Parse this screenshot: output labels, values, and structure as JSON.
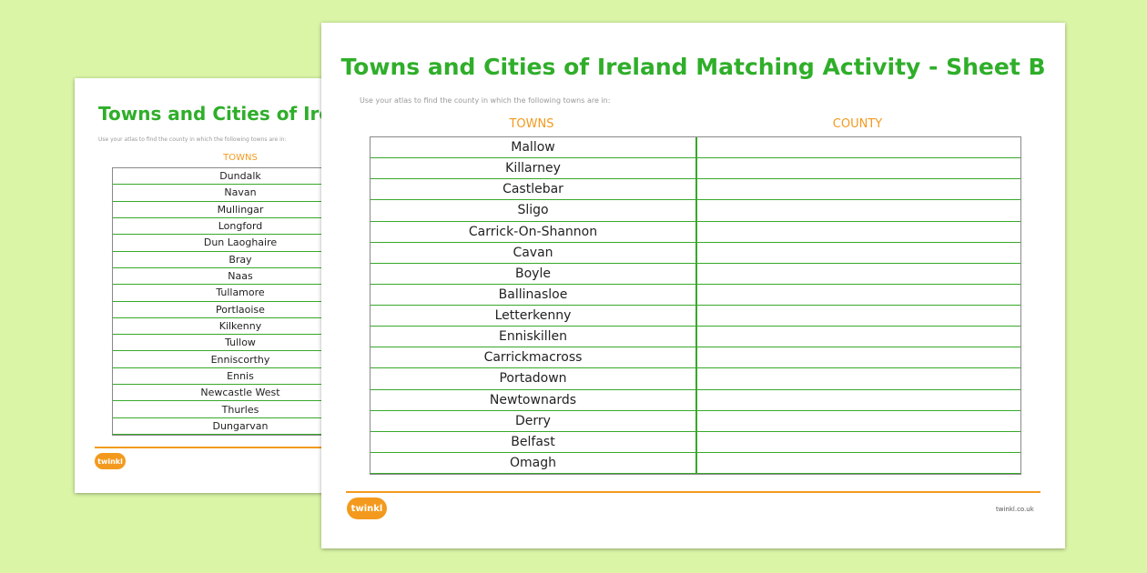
{
  "back_sheet": {
    "title": "Towns and Cities of Ireland",
    "instruction": "Use your atlas to find the county in which the following towns are in:",
    "towns_header": "TOWNS",
    "towns": [
      "Dundalk",
      "Navan",
      "Mullingar",
      "Longford",
      "Dun Laoghaire",
      "Bray",
      "Naas",
      "Tullamore",
      "Portlaoise",
      "Kilkenny",
      "Tullow",
      "Enniscorthy",
      "Ennis",
      "Newcastle West",
      "Thurles",
      "Dungarvan"
    ],
    "logo": "twinkl"
  },
  "front_sheet": {
    "title": "Towns and Cities of Ireland Matching Activity - Sheet B",
    "instruction": "Use your atlas to find the county in which the following towns are in:",
    "towns_header": "TOWNS",
    "county_header": "COUNTY",
    "towns": [
      "Mallow",
      "Killarney",
      "Castlebar",
      "Sligo",
      "Carrick-On-Shannon",
      "Cavan",
      "Boyle",
      "Ballinasloe",
      "Letterkenny",
      "Enniskillen",
      "Carrickmacross",
      "Portadown",
      "Newtownards",
      "Derry",
      "Belfast",
      "Omagh"
    ],
    "logo": "twinkl",
    "website": "twinkl.co.uk"
  }
}
